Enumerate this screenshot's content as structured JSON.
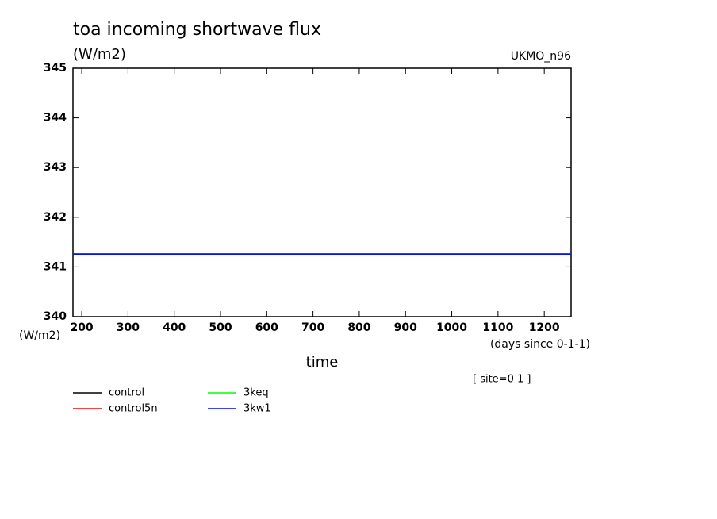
{
  "chart_data": {
    "type": "line",
    "title": "toa incoming shortwave flux",
    "subtitle": "(W/m2)",
    "model_label": "UKMO_n96",
    "y_units": "(W/m2)",
    "x_units": "(days since 0-1-1)",
    "xlabel": "time",
    "annotation": "[ site=0 1 ]",
    "x": [
      181,
      1258
    ],
    "series": [
      {
        "name": "control",
        "color": "#000000",
        "values": [
          341.26,
          341.26
        ]
      },
      {
        "name": "control5n",
        "color": "#ff0000",
        "values": [
          341.26,
          341.26
        ]
      },
      {
        "name": "3keq",
        "color": "#00ff00",
        "values": [
          341.26,
          341.26
        ]
      },
      {
        "name": "3kw1",
        "color": "#0000ff",
        "values": [
          341.26,
          341.26
        ]
      }
    ],
    "xlim": [
      181,
      1258
    ],
    "xticks": [
      200,
      300,
      400,
      500,
      600,
      700,
      800,
      900,
      1000,
      1100,
      1200
    ],
    "ylim": [
      340,
      345
    ],
    "yticks": [
      340,
      341,
      342,
      343,
      344,
      345
    ]
  }
}
